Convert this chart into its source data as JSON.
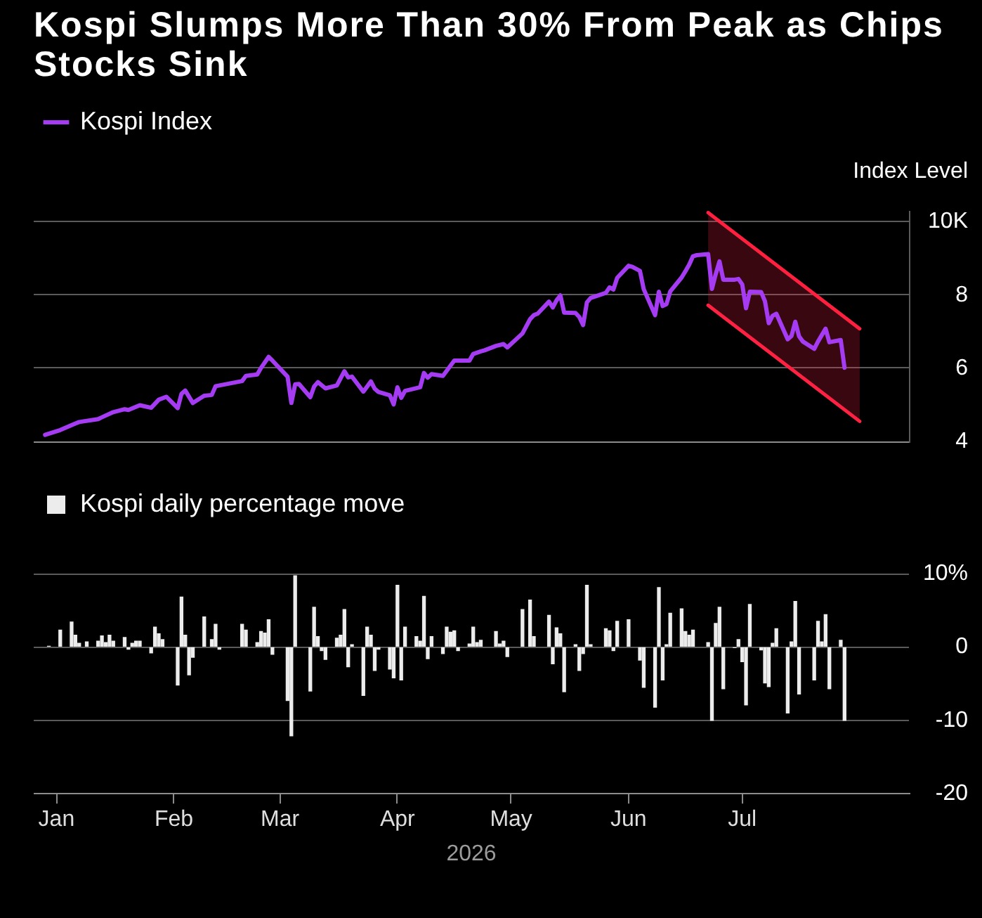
{
  "chart_data": [
    {
      "type": "line",
      "title": "Kospi Slumps More Than 30% From Peak as Chips Stocks Sink",
      "ylabel": "Index Level",
      "xlim": [
        "2025-12-26",
        "2026-08-14"
      ],
      "ylim": [
        4,
        10.3
      ],
      "yticks": [
        4,
        6,
        8,
        {
          "value": 10,
          "label": "10K"
        }
      ],
      "grid": "y",
      "legend": "top left",
      "tick_labels": "y",
      "series": [
        {
          "name": "Kospi Index",
          "color": "#a53cf3",
          "x": [
            "2025-12-29",
            "2026-01-02",
            "2026-01-06",
            "2026-01-07",
            "2026-01-12",
            "2026-01-13",
            "2026-01-16",
            "2026-01-19",
            "2026-01-20",
            "2026-01-23",
            "2026-01-26",
            "2026-01-28",
            "2026-01-30",
            "2026-02-02",
            "2026-02-03",
            "2026-02-04",
            "2026-02-06",
            "2026-02-09",
            "2026-02-11",
            "2026-02-12",
            "2026-02-13",
            "2026-02-19",
            "2026-02-20",
            "2026-02-23",
            "2026-02-24",
            "2026-02-26",
            "2026-02-27",
            "2026-03-03",
            "2026-03-04",
            "2026-03-05",
            "2026-03-06",
            "2026-03-09",
            "2026-03-10",
            "2026-03-11",
            "2026-03-13",
            "2026-03-16",
            "2026-03-18",
            "2026-03-19",
            "2026-03-20",
            "2026-03-23",
            "2026-03-25",
            "2026-03-26",
            "2026-03-27",
            "2026-03-30",
            "2026-03-31",
            "2026-04-01",
            "2026-04-02",
            "2026-04-03",
            "2026-04-07",
            "2026-04-08",
            "2026-04-09",
            "2026-04-10",
            "2026-04-13",
            "2026-04-16",
            "2026-04-20",
            "2026-04-21",
            "2026-04-23",
            "2026-04-24",
            "2026-04-27",
            "2026-04-29",
            "2026-04-30",
            "2026-05-04",
            "2026-05-06",
            "2026-05-07",
            "2026-05-08",
            "2026-05-11",
            "2026-05-12",
            "2026-05-13",
            "2026-05-14",
            "2026-05-15",
            "2026-05-18",
            "2026-05-19",
            "2026-05-20",
            "2026-05-21",
            "2026-05-22",
            "2026-05-26",
            "2026-05-27",
            "2026-05-28",
            "2026-05-29",
            "2026-06-01",
            "2026-06-02",
            "2026-06-04",
            "2026-06-05",
            "2026-06-08",
            "2026-06-09",
            "2026-06-10",
            "2026-06-11",
            "2026-06-12",
            "2026-06-15",
            "2026-06-16",
            "2026-06-17",
            "2026-06-18",
            "2026-06-19",
            "2026-06-22",
            "2026-06-23",
            "2026-06-24",
            "2026-06-25",
            "2026-06-26",
            "2026-06-29",
            "2026-06-30",
            "2026-07-01",
            "2026-07-02",
            "2026-07-03",
            "2026-07-06",
            "2026-07-07",
            "2026-07-08",
            "2026-07-09",
            "2026-07-10",
            "2026-07-13",
            "2026-07-14",
            "2026-07-15",
            "2026-07-16",
            "2026-07-17",
            "2026-07-20",
            "2026-07-21",
            "2026-07-23",
            "2026-07-24",
            "2026-07-27",
            "2026-07-28"
          ],
          "values": [
            4.18,
            4.31,
            4.49,
            4.53,
            4.61,
            4.66,
            4.8,
            4.88,
            4.86,
            4.99,
            4.92,
            5.14,
            5.22,
            4.91,
            5.3,
            5.39,
            5.05,
            5.25,
            5.27,
            5.51,
            5.53,
            5.65,
            5.79,
            5.83,
            6.01,
            6.31,
            6.21,
            5.77,
            5.05,
            5.56,
            5.57,
            5.21,
            5.5,
            5.62,
            5.45,
            5.53,
            5.92,
            5.75,
            5.77,
            5.36,
            5.64,
            5.44,
            5.35,
            5.26,
            5.01,
            5.48,
            5.19,
            5.38,
            5.48,
            5.87,
            5.74,
            5.84,
            5.79,
            6.21,
            6.21,
            6.39,
            6.46,
            6.49,
            6.61,
            6.66,
            6.57,
            6.95,
            7.34,
            7.45,
            7.49,
            7.82,
            7.66,
            7.86,
            7.99,
            7.52,
            7.51,
            7.4,
            7.18,
            7.8,
            7.92,
            8.06,
            8.21,
            8.15,
            8.47,
            8.8,
            8.77,
            8.66,
            8.16,
            7.45,
            8.09,
            7.7,
            7.75,
            8.1,
            8.48,
            8.65,
            8.83,
            9.06,
            9.09,
            9.12,
            8.17,
            8.57,
            8.92,
            8.42,
            8.42,
            8.44,
            8.29,
            7.64,
            8.09,
            8.08,
            7.83,
            7.23,
            7.43,
            7.49,
            6.79,
            6.88,
            7.27,
            6.87,
            6.73,
            6.53,
            6.73,
            7.08,
            6.71,
            6.77,
            6.01
          ]
        },
        {
          "type": "line",
          "color": "#ff2040",
          "x": [
            "2026-06-22",
            "2026-08-01"
          ],
          "values": [
            10.25,
            7.08
          ]
        },
        {
          "type": "line",
          "color": "#fe2243",
          "x": [
            "2026-06-22",
            "2026-08-01"
          ],
          "values": [
            7.72,
            4.55
          ],
          "lower": [
            7.72,
            4.55
          ],
          "upper": [
            10.25,
            7.08
          ]
        }
      ]
    },
    {
      "type": "bar",
      "xlabel": "2026",
      "xlim": [
        "2025-12-26",
        "2026-08-14"
      ],
      "xticks": [
        {
          "value": "2026-01-01",
          "label": "Jan"
        },
        {
          "value": "2026-02-01",
          "label": "Feb"
        },
        {
          "value": "2026-03-01",
          "label": "Mar"
        },
        {
          "value": "2026-04-01",
          "label": "Apr"
        },
        {
          "value": "2026-05-01",
          "label": "May"
        },
        {
          "value": "2026-06-01",
          "label": "Jun"
        },
        {
          "value": "2026-07-01",
          "label": "Jul"
        }
      ],
      "ylim": [
        -20,
        10
      ],
      "yticks": [
        -20,
        -10,
        0,
        {
          "value": 10,
          "label": "10%"
        }
      ],
      "grid": "y",
      "legend": "top left",
      "x": [
        "2025-12-30",
        "2026-01-02",
        "2026-01-05",
        "2026-01-06",
        "2026-01-07",
        "2026-01-09",
        "2026-01-12",
        "2026-01-13",
        "2026-01-14",
        "2026-01-15",
        "2026-01-16",
        "2026-01-19",
        "2026-01-20",
        "2026-01-21",
        "2026-01-22",
        "2026-01-23",
        "2026-01-26",
        "2026-01-27",
        "2026-01-28",
        "2026-01-29",
        "2026-02-02",
        "2026-02-03",
        "2026-02-04",
        "2026-02-05",
        "2026-02-06",
        "2026-02-09",
        "2026-02-11",
        "2026-02-12",
        "2026-02-13",
        "2026-02-19",
        "2026-02-20",
        "2026-02-23",
        "2026-02-24",
        "2026-02-25",
        "2026-02-26",
        "2026-02-27",
        "2026-03-03",
        "2026-03-04",
        "2026-03-05",
        "2026-03-09",
        "2026-03-10",
        "2026-03-11",
        "2026-03-12",
        "2026-03-13",
        "2026-03-16",
        "2026-03-17",
        "2026-03-18",
        "2026-03-19",
        "2026-03-20",
        "2026-03-23",
        "2026-03-24",
        "2026-03-25",
        "2026-03-26",
        "2026-03-27",
        "2026-03-30",
        "2026-03-31",
        "2026-04-01",
        "2026-04-02",
        "2026-04-03",
        "2026-04-06",
        "2026-04-07",
        "2026-04-08",
        "2026-04-09",
        "2026-04-10",
        "2026-04-13",
        "2026-04-14",
        "2026-04-15",
        "2026-04-16",
        "2026-04-17",
        "2026-04-20",
        "2026-04-21",
        "2026-04-22",
        "2026-04-23",
        "2026-04-27",
        "2026-04-28",
        "2026-04-29",
        "2026-04-30",
        "2026-05-04",
        "2026-05-06",
        "2026-05-07",
        "2026-05-11",
        "2026-05-12",
        "2026-05-13",
        "2026-05-14",
        "2026-05-15",
        "2026-05-18",
        "2026-05-19",
        "2026-05-20",
        "2026-05-21",
        "2026-05-22",
        "2026-05-26",
        "2026-05-27",
        "2026-05-28",
        "2026-05-29",
        "2026-06-01",
        "2026-06-04",
        "2026-06-05",
        "2026-06-08",
        "2026-06-09",
        "2026-06-10",
        "2026-06-11",
        "2026-06-12",
        "2026-06-15",
        "2026-06-16",
        "2026-06-17",
        "2026-06-18",
        "2026-06-22",
        "2026-06-23",
        "2026-06-24",
        "2026-06-25",
        "2026-06-26",
        "2026-06-29",
        "2026-06-30",
        "2026-07-01",
        "2026-07-02",
        "2026-07-03",
        "2026-07-06",
        "2026-07-07",
        "2026-07-08",
        "2026-07-09",
        "2026-07-10",
        "2026-07-13",
        "2026-07-14",
        "2026-07-15",
        "2026-07-16",
        "2026-07-20",
        "2026-07-21",
        "2026-07-22",
        "2026-07-23",
        "2026-07-24",
        "2026-07-27",
        "2026-07-28"
      ],
      "series": [
        {
          "name": "Kospi daily percentage move",
          "color": "#ececec",
          "values": [
            0.1,
            2.3,
            3.4,
            1.6,
            0.5,
            0.7,
            0.8,
            1.5,
            0.6,
            1.6,
            0.8,
            1.3,
            -0.3,
            0.5,
            0.8,
            0.8,
            -0.8,
            2.7,
            1.8,
            1.0,
            -5.2,
            6.8,
            1.6,
            -3.8,
            -1.4,
            4.1,
            1.0,
            3.1,
            -0.3,
            3.1,
            2.3,
            0.6,
            2.1,
            1.9,
            3.7,
            -1.0,
            -7.3,
            -12.1,
            9.7,
            -6.0,
            5.4,
            1.4,
            -0.5,
            -1.7,
            1.2,
            1.6,
            5.1,
            -2.7,
            0.3,
            -6.6,
            2.7,
            1.6,
            -3.2,
            -0.3,
            -3.0,
            -4.2,
            8.4,
            -4.5,
            2.7,
            1.4,
            0.8,
            6.9,
            -1.6,
            1.4,
            -0.9,
            2.7,
            2.0,
            2.2,
            -0.5,
            0.4,
            2.7,
            0.6,
            0.9,
            2.1,
            0.4,
            0.8,
            -1.3,
            5.1,
            6.4,
            1.4,
            4.3,
            -2.3,
            2.6,
            1.8,
            -6.1,
            0.3,
            -3.2,
            -0.9,
            8.4,
            0.3,
            2.5,
            2.2,
            -0.5,
            3.5,
            3.7,
            -1.8,
            -5.5,
            -8.2,
            8.1,
            -4.5,
            0.3,
            4.6,
            5.2,
            2.1,
            1.6,
            2.3,
            0.6,
            -10.0,
            3.2,
            5.4,
            -5.7,
            -0.1,
            1.0,
            -2.0,
            -7.9,
            5.8,
            -0.4,
            -4.9,
            -5.4,
            0.5,
            2.5,
            -9.0,
            0.7,
            6.2,
            -6.4,
            -4.5,
            3.5,
            0.7,
            4.4,
            -5.7,
            0.9,
            -10.0
          ]
        }
      ]
    }
  ]
}
